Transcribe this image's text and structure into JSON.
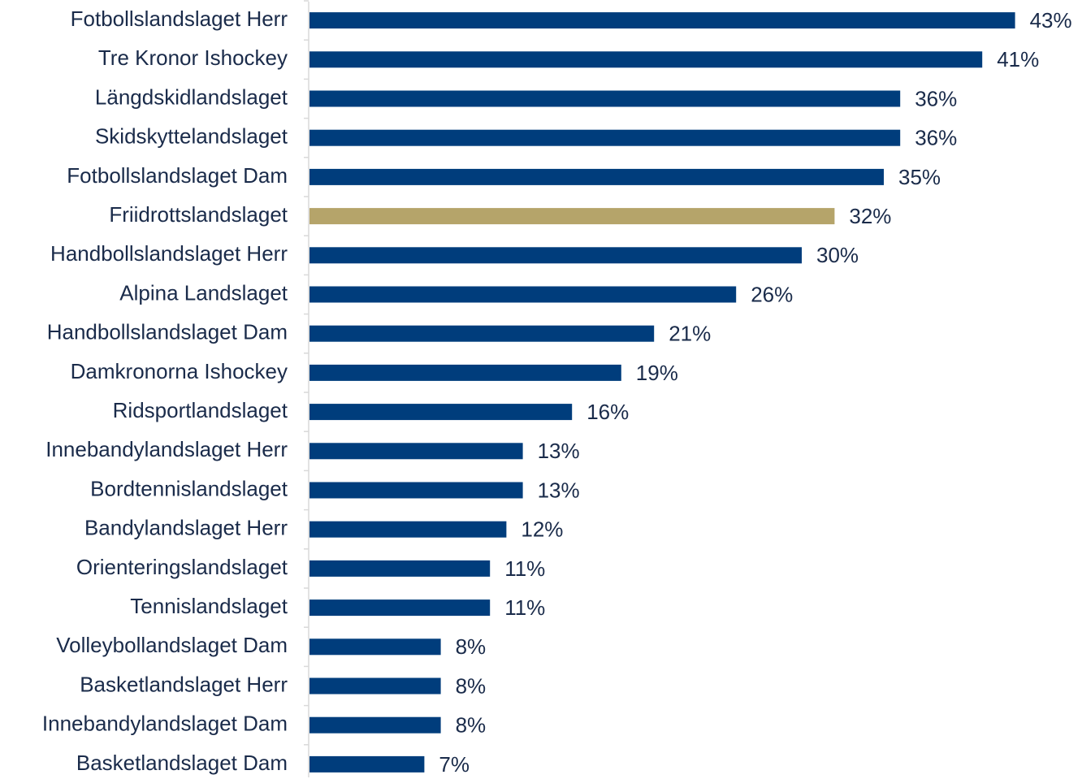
{
  "chart_data": {
    "type": "bar",
    "orientation": "horizontal",
    "categories": [
      "Fotbollslandslaget Herr",
      "Tre Kronor Ishockey",
      "Längdskidlandslaget",
      "Skidskyttelandslaget",
      "Fotbollslandslaget Dam",
      "Friidrottslandslaget",
      "Handbollslandslaget Herr",
      "Alpina Landslaget",
      "Handbollslandslaget Dam",
      "Damkronorna Ishockey",
      "Ridsportlandslaget",
      "Innebandylandslaget Herr",
      "Bordtennislandslaget",
      "Bandylandslaget Herr",
      "Orienteringslandslaget",
      "Tennislandslaget",
      "Volleybollandslaget Dam",
      "Basketlandslaget Herr",
      "Innebandylandslaget Dam",
      "Basketlandslaget Dam"
    ],
    "values": [
      43,
      41,
      36,
      36,
      35,
      32,
      30,
      26,
      21,
      19,
      16,
      13,
      13,
      12,
      11,
      11,
      8,
      8,
      8,
      7
    ],
    "value_labels": [
      "43%",
      "41%",
      "36%",
      "36%",
      "35%",
      "32%",
      "30%",
      "26%",
      "21%",
      "19%",
      "16%",
      "13%",
      "13%",
      "12%",
      "11%",
      "11%",
      "8%",
      "8%",
      "8%",
      "7%"
    ],
    "colors": [
      "#003d7c",
      "#003d7c",
      "#003d7c",
      "#003d7c",
      "#003d7c",
      "#b5a46a",
      "#003d7c",
      "#003d7c",
      "#003d7c",
      "#003d7c",
      "#003d7c",
      "#003d7c",
      "#003d7c",
      "#003d7c",
      "#003d7c",
      "#003d7c",
      "#003d7c",
      "#003d7c",
      "#003d7c",
      "#003d7c"
    ],
    "xlim": [
      0,
      45
    ]
  }
}
